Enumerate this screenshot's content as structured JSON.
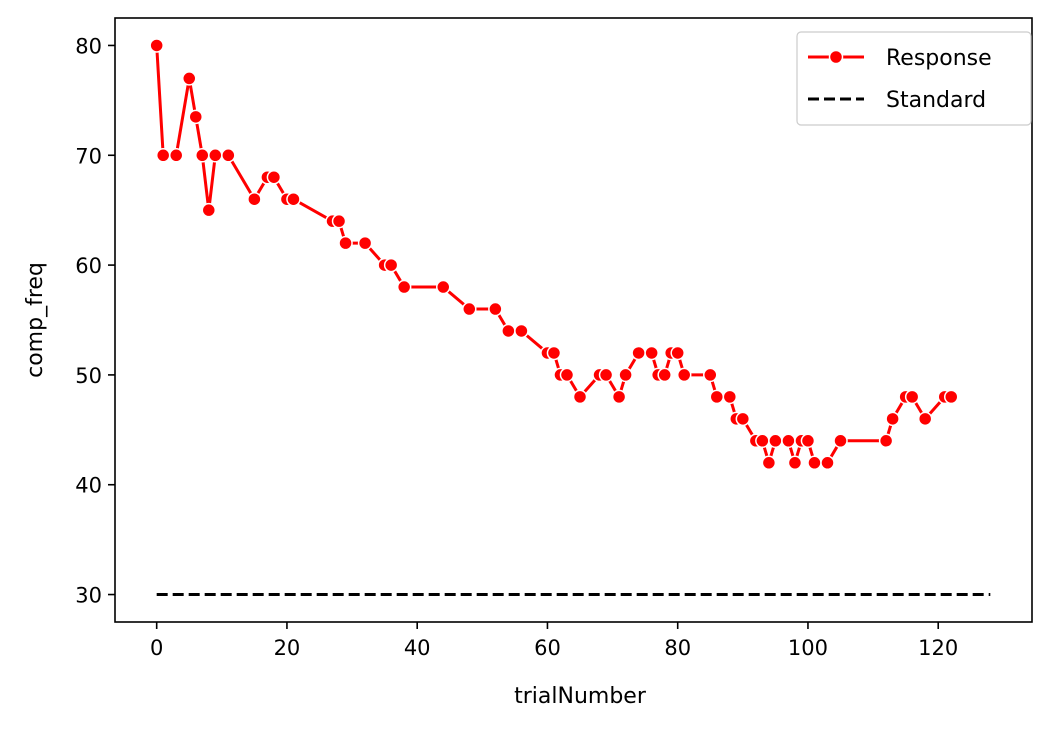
{
  "chart_data": {
    "type": "line",
    "title": "",
    "xlabel": "trialNumber",
    "ylabel": "comp_freq",
    "xlim": [
      -6.4,
      134.4
    ],
    "ylim": [
      27.5,
      82.5
    ],
    "xticks": [
      0,
      20,
      40,
      60,
      80,
      100,
      120
    ],
    "yticks": [
      30,
      40,
      50,
      60,
      70,
      80
    ],
    "grid": false,
    "legend_position": "top-right",
    "series": [
      {
        "name": "Response",
        "color": "#ff0000",
        "style": "line-marker",
        "x": [
          0,
          1,
          3,
          5,
          6,
          7,
          8,
          9,
          11,
          15,
          17,
          18,
          20,
          21,
          27,
          28,
          29,
          32,
          35,
          36,
          38,
          44,
          48,
          52,
          54,
          56,
          60,
          61,
          62,
          63,
          65,
          68,
          69,
          71,
          72,
          74,
          76,
          77,
          78,
          79,
          80,
          81,
          85,
          86,
          88,
          89,
          90,
          92,
          93,
          94,
          95,
          97,
          98,
          99,
          100,
          101,
          103,
          105,
          112,
          113,
          115,
          116,
          118,
          121,
          122
        ],
        "y": [
          80,
          70,
          70,
          77,
          73.5,
          70,
          65,
          70,
          70,
          66,
          68,
          68,
          66,
          66,
          64,
          64,
          62,
          62,
          60,
          60,
          58,
          58,
          56,
          56,
          54,
          54,
          52,
          52,
          50,
          50,
          48,
          50,
          50,
          48,
          50,
          52,
          52,
          50,
          50,
          52,
          52,
          50,
          50,
          48,
          48,
          46,
          46,
          44,
          44,
          42,
          44,
          44,
          42,
          44,
          44,
          42,
          42,
          44,
          44,
          46,
          48,
          48,
          46,
          48,
          48
        ]
      },
      {
        "name": "Standard",
        "color": "#000000",
        "style": "dashed",
        "x": [
          0,
          128
        ],
        "y": [
          30,
          30
        ]
      }
    ]
  }
}
